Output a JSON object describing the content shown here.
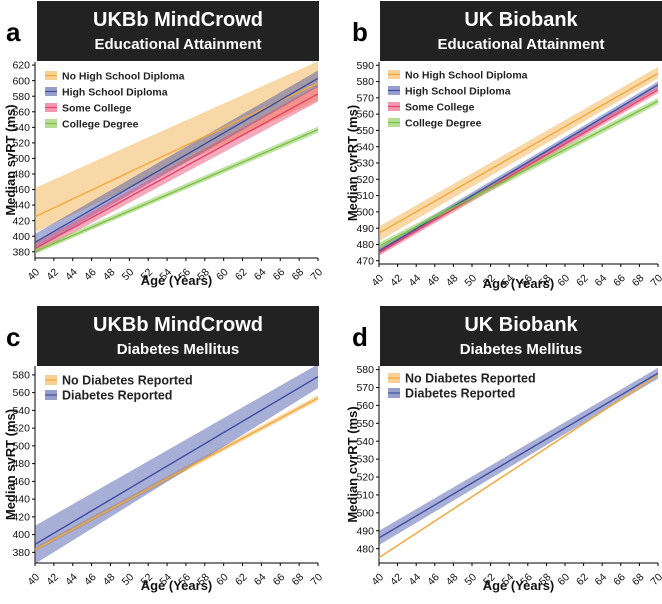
{
  "chart_data": [
    {
      "id": "a",
      "type": "line",
      "panel_letter": "a",
      "title": "UKBb MindCrowd",
      "subtitle": "Educational Attainment",
      "xlabel": "Age (Years)",
      "ylabel": "Median svRT (ms)",
      "xlim": [
        40,
        70
      ],
      "ylim": [
        372,
        624
      ],
      "x_ticks": [
        40,
        42,
        44,
        46,
        48,
        50,
        52,
        54,
        56,
        58,
        60,
        62,
        64,
        66,
        68,
        70
      ],
      "y_ticks": [
        380,
        400,
        420,
        440,
        460,
        480,
        500,
        520,
        540,
        560,
        580,
        600,
        620
      ],
      "legend_position": "top-left",
      "series": [
        {
          "name": "No High School Diploma",
          "color": "#F2A93B",
          "x": [
            40,
            70
          ],
          "y": [
            425,
            597
          ],
          "lower": [
            405,
            575
          ],
          "upper": [
            462,
            625
          ]
        },
        {
          "name": "High School Diploma",
          "color": "#3F4EA3",
          "x": [
            40,
            70
          ],
          "y": [
            392,
            603
          ],
          "lower": [
            384,
            592
          ],
          "upper": [
            403,
            613
          ]
        },
        {
          "name": "Some College",
          "color": "#E8416B",
          "x": [
            40,
            70
          ],
          "y": [
            384,
            583
          ],
          "lower": [
            378,
            573
          ],
          "upper": [
            391,
            594
          ]
        },
        {
          "name": "College Degree",
          "color": "#7CC242",
          "x": [
            40,
            70
          ],
          "y": [
            380,
            537
          ],
          "lower": [
            377,
            533
          ],
          "upper": [
            384,
            541
          ]
        }
      ]
    },
    {
      "id": "b",
      "type": "line",
      "panel_letter": "b",
      "title": "UK Biobank",
      "subtitle": "Educational Attainment",
      "xlabel": "Age (Years)",
      "ylabel": "Median cvrRT (ms)",
      "xlim": [
        40,
        70
      ],
      "ylim": [
        468,
        592
      ],
      "x_ticks": [
        40,
        42,
        44,
        46,
        48,
        50,
        52,
        54,
        56,
        58,
        60,
        62,
        64,
        66,
        68,
        70
      ],
      "y_ticks": [
        470,
        480,
        490,
        500,
        510,
        520,
        530,
        540,
        550,
        560,
        570,
        580,
        590
      ],
      "legend_position": "top-left",
      "series": [
        {
          "name": "No High School Diploma",
          "color": "#F2A93B",
          "x": [
            40,
            70
          ],
          "y": [
            487,
            585
          ],
          "lower": [
            482,
            582
          ],
          "upper": [
            491,
            589
          ]
        },
        {
          "name": "High School Diploma",
          "color": "#3F4EA3",
          "x": [
            40,
            70
          ],
          "y": [
            476,
            578
          ],
          "lower": [
            474,
            576
          ],
          "upper": [
            478,
            580
          ]
        },
        {
          "name": "Some College",
          "color": "#E8416B",
          "x": [
            40,
            70
          ],
          "y": [
            475,
            575
          ],
          "lower": [
            473,
            573
          ],
          "upper": [
            477,
            577
          ]
        },
        {
          "name": "College Degree",
          "color": "#7CC242",
          "x": [
            40,
            70
          ],
          "y": [
            479,
            568
          ],
          "lower": [
            477,
            566
          ],
          "upper": [
            481,
            570
          ]
        }
      ]
    },
    {
      "id": "c",
      "type": "line",
      "panel_letter": "c",
      "title": "UKBb MindCrowd",
      "subtitle": "Diabetes Mellitus",
      "xlabel": "Age (Years)",
      "ylabel": "Median svRT (ms)",
      "xlim": [
        40,
        70
      ],
      "ylim": [
        368,
        590
      ],
      "x_ticks": [
        40,
        42,
        44,
        46,
        48,
        50,
        52,
        54,
        56,
        58,
        60,
        62,
        64,
        66,
        68,
        70
      ],
      "y_ticks": [
        380,
        400,
        420,
        440,
        460,
        480,
        500,
        520,
        540,
        560,
        580
      ],
      "legend_position": "top-left",
      "series": [
        {
          "name": "No Diabetes Reported",
          "color": "#F2A93B",
          "x": [
            40,
            70
          ],
          "y": [
            383,
            554
          ],
          "lower": [
            381,
            551
          ],
          "upper": [
            386,
            557
          ]
        },
        {
          "name": "Diabetes Reported",
          "color": "#3F4EA3",
          "x": [
            40,
            70
          ],
          "y": [
            389,
            578
          ],
          "lower": [
            367,
            565
          ],
          "upper": [
            410,
            592
          ]
        }
      ]
    },
    {
      "id": "d",
      "type": "line",
      "panel_letter": "d",
      "title": "UK Biobank",
      "subtitle": "Diabetes Mellitus",
      "xlabel": "Age (Years)",
      "ylabel": "Median cvrRT (ms)",
      "xlim": [
        40,
        70
      ],
      "ylim": [
        472,
        582
      ],
      "x_ticks": [
        40,
        42,
        44,
        46,
        48,
        50,
        52,
        54,
        56,
        58,
        60,
        62,
        64,
        66,
        68,
        70
      ],
      "y_ticks": [
        480,
        490,
        500,
        510,
        520,
        530,
        540,
        550,
        560,
        570,
        580
      ],
      "legend_position": "top-left",
      "series": [
        {
          "name": "No Diabetes Reported",
          "color": "#F2A93B",
          "x": [
            40,
            70
          ],
          "y": [
            475,
            577
          ],
          "lower": [
            474.5,
            576.5
          ],
          "upper": [
            475.5,
            577.5
          ]
        },
        {
          "name": "Diabetes Reported",
          "color": "#3F4EA3",
          "x": [
            40,
            70
          ],
          "y": [
            486,
            578
          ],
          "lower": [
            482,
            575
          ],
          "upper": [
            490,
            581
          ]
        }
      ]
    }
  ]
}
